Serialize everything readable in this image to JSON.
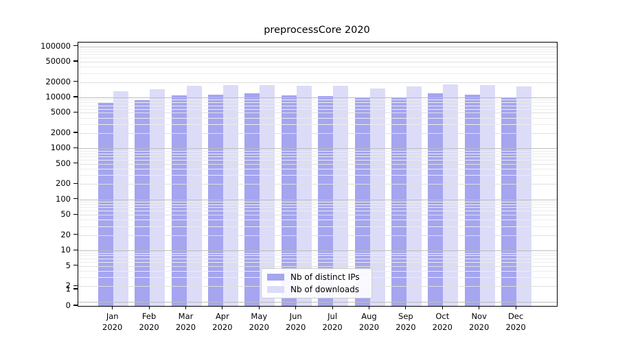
{
  "title": "preprocessCore 2020",
  "legend": {
    "items": [
      {
        "label": "Nb of distinct IPs",
        "color": "#a5a5f0"
      },
      {
        "label": "Nb of downloads",
        "color": "#dcdcf8"
      }
    ]
  },
  "chart_data": {
    "type": "bar",
    "title": "preprocessCore 2020",
    "categories": [
      "Jan",
      "Feb",
      "Mar",
      "Apr",
      "May",
      "Jun",
      "Jul",
      "Aug",
      "Sep",
      "Oct",
      "Nov",
      "Dec"
    ],
    "x_tick_second_line": "2020",
    "series": [
      {
        "name": "Nb of distinct IPs",
        "color": "#a5a5f0",
        "values": [
          8100,
          9150,
          10900,
          11400,
          12000,
          10900,
          10550,
          9600,
          10100,
          12050,
          11400,
          9800
        ]
      },
      {
        "name": "Nb of downloads",
        "color": "#dcdcf8",
        "values": [
          13200,
          14700,
          16900,
          17300,
          17650,
          16800,
          16750,
          14800,
          16400,
          18200,
          17600,
          16400
        ]
      }
    ],
    "yticks": [
      100000,
      50000,
      20000,
      10000,
      5000,
      2000,
      1000,
      500,
      200,
      100,
      50,
      20,
      10,
      5,
      2,
      1,
      0
    ],
    "yscale": "log-with-zero",
    "ylim": [
      0,
      130000
    ],
    "grid": true,
    "legend_position": "lower center",
    "grid_colors": {
      "major": "#bdbdbd",
      "labeled_minor": "#dfdfdf",
      "minor": "#ececec"
    }
  }
}
